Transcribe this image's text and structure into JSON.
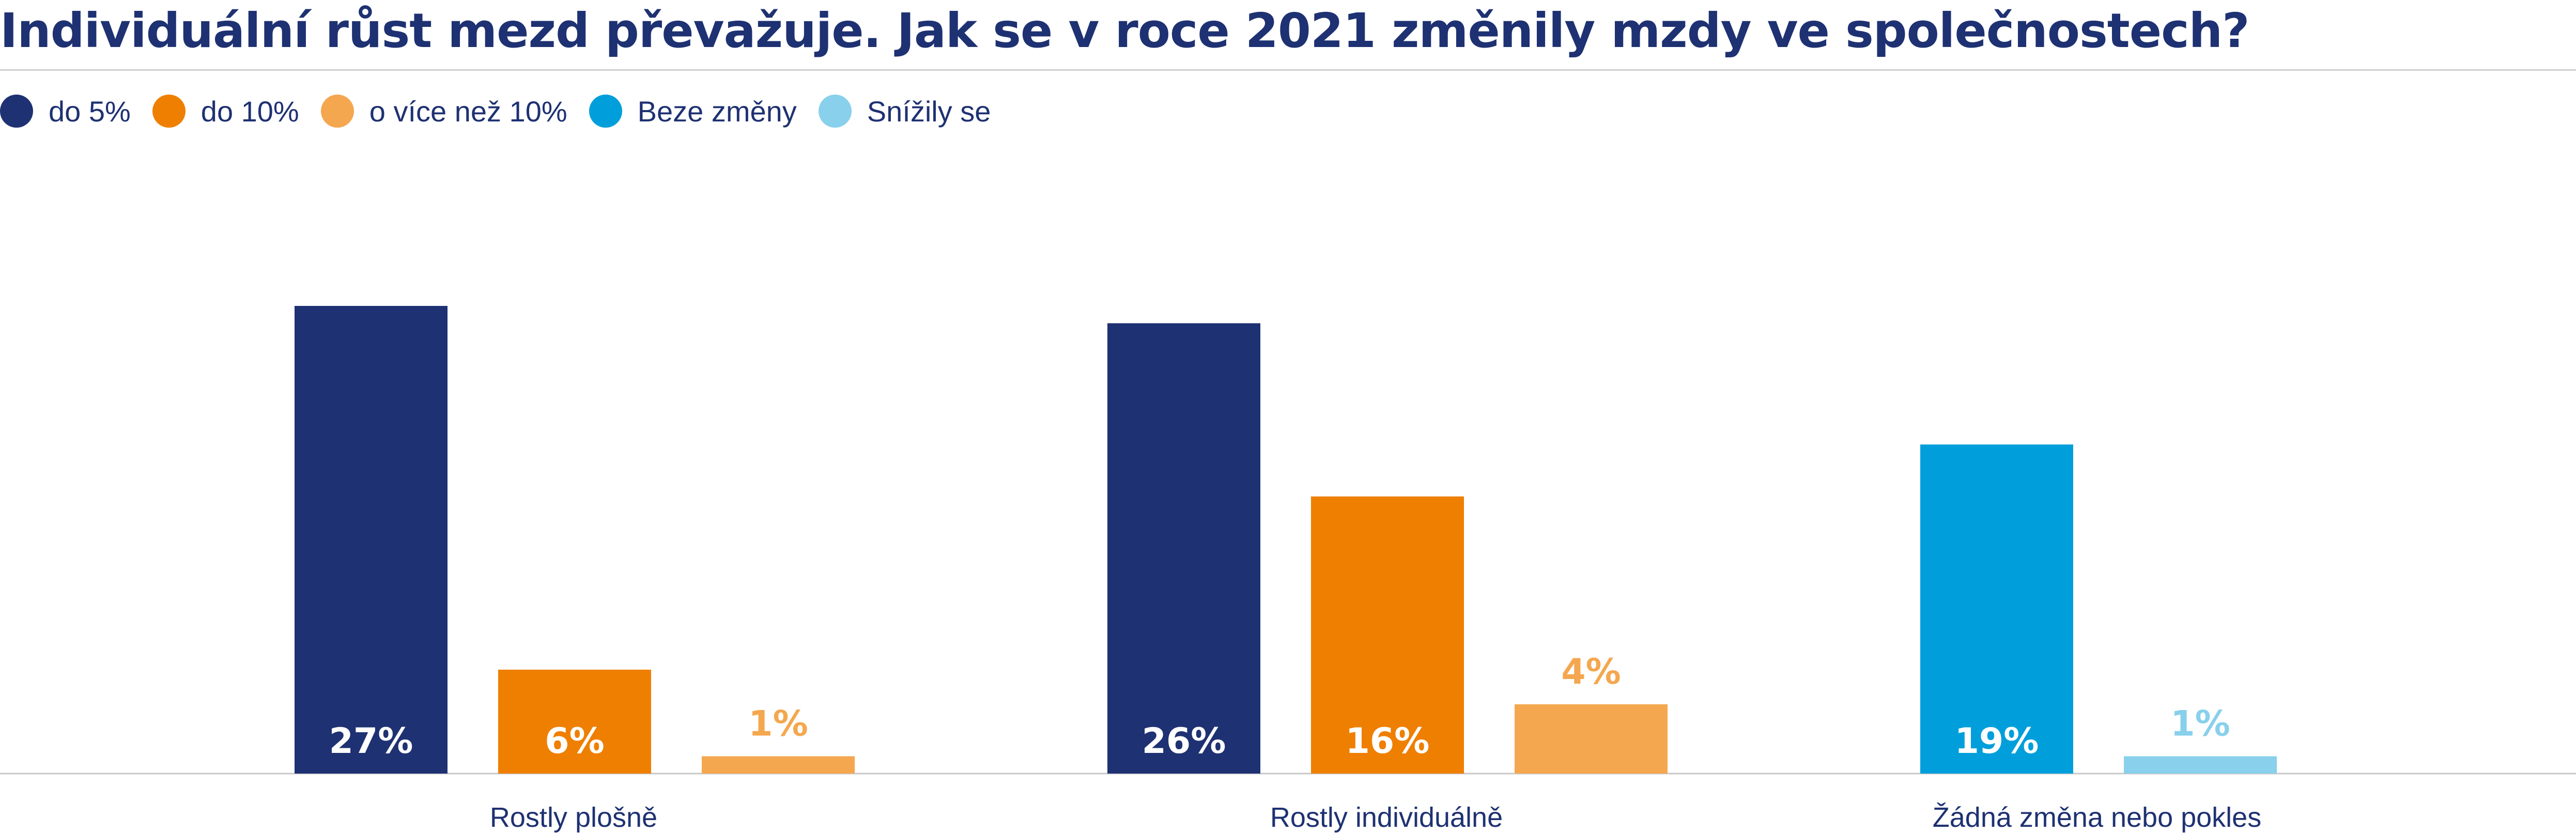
{
  "title": "Individuální růst mezd převažuje. Jak se v roce 2021 změnily mzdy ve společnostech?",
  "legend": [
    {
      "label": "do 5%",
      "color": "#1e3172"
    },
    {
      "label": "do 10%",
      "color": "#ef7f00"
    },
    {
      "label": "o více než 10%",
      "color": "#f4a74f"
    },
    {
      "label": "Beze změny",
      "color": "#009fdb"
    },
    {
      "label": "Snížily se",
      "color": "#88d0ec"
    }
  ],
  "chart_data": {
    "type": "bar",
    "title": "Individuální růst mezd převažuje. Jak se v roce 2021 změnily mzdy ve společnostech?",
    "xlabel": "",
    "ylabel": "",
    "ylim": [
      0,
      27
    ],
    "grid": false,
    "legend_position": "top-left",
    "groups": [
      {
        "category": "Rostly plošně",
        "bars": [
          {
            "series": "do 5%",
            "value": 27,
            "label": "27%",
            "color": "#1e3172",
            "label_inside": true
          },
          {
            "series": "do 10%",
            "value": 6,
            "label": "6%",
            "color": "#ef7f00",
            "label_inside": true
          },
          {
            "series": "o více než 10%",
            "value": 1,
            "label": "1%",
            "color": "#f4a74f",
            "label_inside": false
          }
        ]
      },
      {
        "category": "Rostly individuálně",
        "bars": [
          {
            "series": "do 5%",
            "value": 26,
            "label": "26%",
            "color": "#1e3172",
            "label_inside": true
          },
          {
            "series": "do 10%",
            "value": 16,
            "label": "16%",
            "color": "#ef7f00",
            "label_inside": true
          },
          {
            "series": "o více než 10%",
            "value": 4,
            "label": "4%",
            "color": "#f4a74f",
            "label_inside": false
          }
        ]
      },
      {
        "category": "Žádná změna nebo pokles",
        "bars": [
          {
            "series": "Beze změny",
            "value": 19,
            "label": "19%",
            "color": "#009fdb",
            "label_inside": true
          },
          {
            "series": "Snížily se",
            "value": 1,
            "label": "1%",
            "color": "#88d0ec",
            "label_inside": false
          }
        ]
      }
    ]
  }
}
